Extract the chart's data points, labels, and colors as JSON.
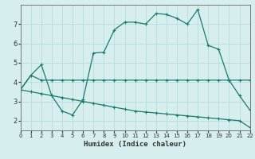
{
  "title": "",
  "xlabel": "Humidex (Indice chaleur)",
  "ylabel": "",
  "background_color": "#d6eeee",
  "grid_color": "#b0d8d8",
  "line_color": "#1a7a6a",
  "xlim": [
    0,
    22
  ],
  "ylim": [
    1.5,
    8.0
  ],
  "xticks": [
    0,
    1,
    2,
    3,
    4,
    5,
    6,
    7,
    8,
    9,
    10,
    11,
    12,
    13,
    14,
    15,
    16,
    17,
    18,
    19,
    20,
    21,
    22
  ],
  "yticks": [
    2,
    3,
    4,
    5,
    6,
    7
  ],
  "series1_x": [
    0,
    1,
    2,
    3,
    4,
    5,
    6,
    7,
    8,
    9,
    10,
    11,
    12,
    13,
    14,
    15,
    16,
    17,
    18,
    19,
    20,
    21,
    22
  ],
  "series1_y": [
    3.6,
    4.35,
    4.1,
    4.1,
    4.1,
    4.1,
    4.1,
    4.1,
    4.1,
    4.1,
    4.1,
    4.1,
    4.1,
    4.1,
    4.1,
    4.1,
    4.1,
    4.1,
    4.1,
    4.1,
    4.1,
    4.1,
    4.1
  ],
  "series2_x": [
    0,
    1,
    2,
    3,
    4,
    5,
    6,
    7,
    8,
    9,
    10,
    11,
    12,
    13,
    14,
    15,
    16,
    17,
    18,
    19,
    20,
    21,
    22
  ],
  "series2_y": [
    3.6,
    4.35,
    4.9,
    3.3,
    2.5,
    2.3,
    3.1,
    5.5,
    5.55,
    6.7,
    7.1,
    7.1,
    7.0,
    7.55,
    7.5,
    7.3,
    7.0,
    7.75,
    5.9,
    5.7,
    4.1,
    3.3,
    2.55
  ],
  "series3_x": [
    0,
    1,
    2,
    3,
    4,
    5,
    6,
    7,
    8,
    9,
    10,
    11,
    12,
    13,
    14,
    15,
    16,
    17,
    18,
    19,
    20,
    21,
    22
  ],
  "series3_y": [
    3.6,
    3.5,
    3.4,
    3.3,
    3.2,
    3.1,
    3.0,
    2.9,
    2.8,
    2.7,
    2.6,
    2.5,
    2.45,
    2.4,
    2.35,
    2.3,
    2.25,
    2.2,
    2.15,
    2.1,
    2.05,
    2.0,
    1.65
  ]
}
